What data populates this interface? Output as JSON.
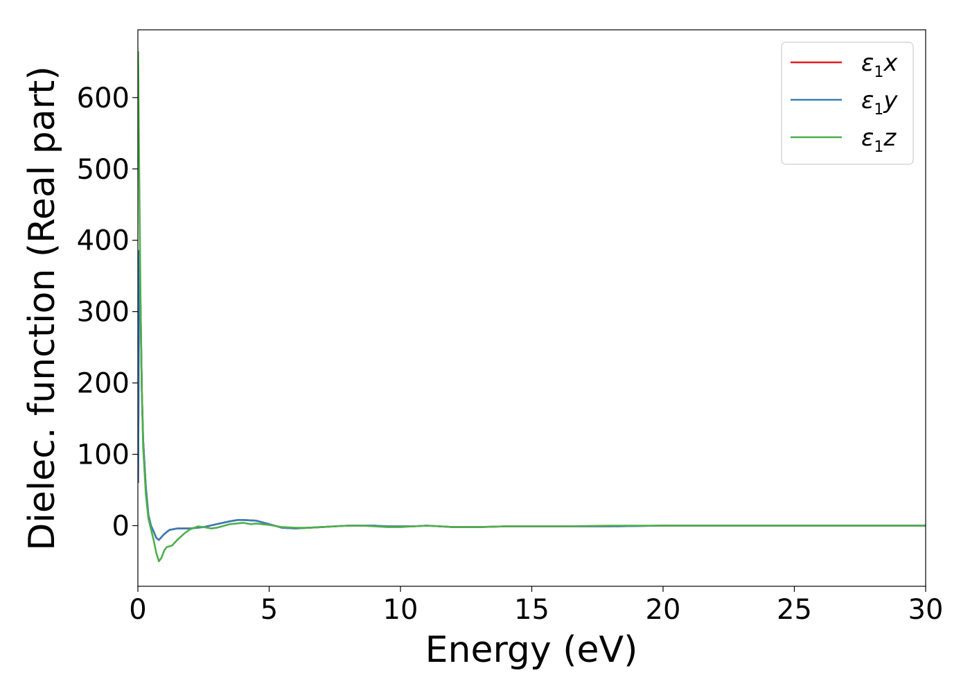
{
  "chart_data": {
    "type": "line",
    "xlabel": "Energy (eV)",
    "ylabel": "Dielec. function (Real part)",
    "xlim": [
      0,
      30
    ],
    "ylim": [
      -85,
      695
    ],
    "xticks": [
      0,
      5,
      10,
      15,
      20,
      25,
      30
    ],
    "yticks": [
      0,
      100,
      200,
      300,
      400,
      500,
      600
    ],
    "grid": false,
    "legend_position": "top-right",
    "series": [
      {
        "name": "ε1x",
        "label_base": "ε",
        "label_sub": "1",
        "label_var": "x",
        "color": "#e41a1c",
        "x": [
          0.01,
          0.05,
          0.1,
          0.15,
          0.2,
          0.3,
          0.4,
          0.5,
          0.6,
          0.7,
          0.8,
          0.9,
          1.0,
          1.2,
          1.5,
          2.0,
          2.5,
          3.0,
          3.5,
          3.8,
          4.0,
          4.5,
          5.0,
          5.5,
          6.0,
          6.5,
          7.0,
          7.5,
          8.0,
          8.5,
          9.0,
          9.5,
          10.0,
          10.5,
          11.0,
          11.5,
          12.0,
          13.0,
          14.0,
          15.0,
          16.0,
          18.0,
          20.0,
          22.0,
          25.0,
          28.0,
          30.0
        ],
        "y": [
          60,
          385,
          310,
          190,
          120,
          55,
          15,
          0,
          -8,
          -17,
          -20,
          -16,
          -12,
          -6,
          -4,
          -4,
          -2,
          2,
          6,
          8,
          8,
          7,
          2,
          -3,
          -4,
          -3,
          -2,
          -1,
          0,
          0,
          0,
          -1,
          -1,
          -1,
          0,
          -1,
          -2,
          -2,
          -1,
          -1,
          -1,
          -1,
          0,
          0,
          0,
          0,
          0
        ]
      },
      {
        "name": "ε1y",
        "label_base": "ε",
        "label_sub": "1",
        "label_var": "y",
        "color": "#377eb8",
        "x": [
          0.01,
          0.05,
          0.1,
          0.15,
          0.2,
          0.3,
          0.4,
          0.5,
          0.6,
          0.7,
          0.8,
          0.9,
          1.0,
          1.2,
          1.5,
          2.0,
          2.5,
          3.0,
          3.5,
          3.8,
          4.0,
          4.5,
          5.0,
          5.5,
          6.0,
          6.5,
          7.0,
          7.5,
          8.0,
          8.5,
          9.0,
          9.5,
          10.0,
          10.5,
          11.0,
          11.5,
          12.0,
          13.0,
          14.0,
          15.0,
          16.0,
          18.0,
          20.0,
          22.0,
          25.0,
          28.0,
          30.0
        ],
        "y": [
          60,
          385,
          310,
          190,
          120,
          55,
          15,
          0,
          -8,
          -17,
          -20,
          -16,
          -12,
          -6,
          -4,
          -4,
          -2,
          2,
          6,
          8,
          8,
          7,
          2,
          -3,
          -4,
          -3,
          -2,
          -1,
          0,
          0,
          0,
          -1,
          -1,
          -1,
          0,
          -1,
          -2,
          -2,
          -1,
          -1,
          -1,
          -1,
          0,
          0,
          0,
          0,
          0
        ]
      },
      {
        "name": "ε1z",
        "label_base": "ε",
        "label_sub": "1",
        "label_var": "z",
        "color": "#4daf4a",
        "x": [
          0.01,
          0.05,
          0.1,
          0.15,
          0.2,
          0.3,
          0.4,
          0.5,
          0.6,
          0.7,
          0.8,
          0.9,
          1.0,
          1.1,
          1.3,
          1.5,
          1.8,
          2.0,
          2.3,
          2.5,
          2.8,
          3.0,
          3.5,
          4.0,
          4.3,
          4.5,
          5.0,
          5.5,
          6.0,
          6.5,
          7.0,
          7.5,
          8.0,
          8.5,
          9.0,
          9.5,
          10.0,
          10.5,
          11.0,
          11.5,
          12.0,
          13.0,
          14.0,
          15.0,
          16.0,
          18.0,
          20.0,
          22.0,
          25.0,
          28.0,
          30.0
        ],
        "y": [
          665,
          500,
          320,
          190,
          110,
          45,
          10,
          -5,
          -20,
          -38,
          -50,
          -45,
          -35,
          -30,
          -28,
          -20,
          -10,
          -5,
          -1,
          -2,
          -4,
          -3,
          2,
          4,
          2,
          3,
          1,
          -2,
          -3,
          -3,
          -2,
          -1,
          0,
          0,
          -1,
          -2,
          -2,
          -1,
          0,
          -1,
          -2,
          -2,
          -1,
          -1,
          -1,
          0,
          0,
          0,
          0,
          0,
          0
        ]
      }
    ]
  }
}
